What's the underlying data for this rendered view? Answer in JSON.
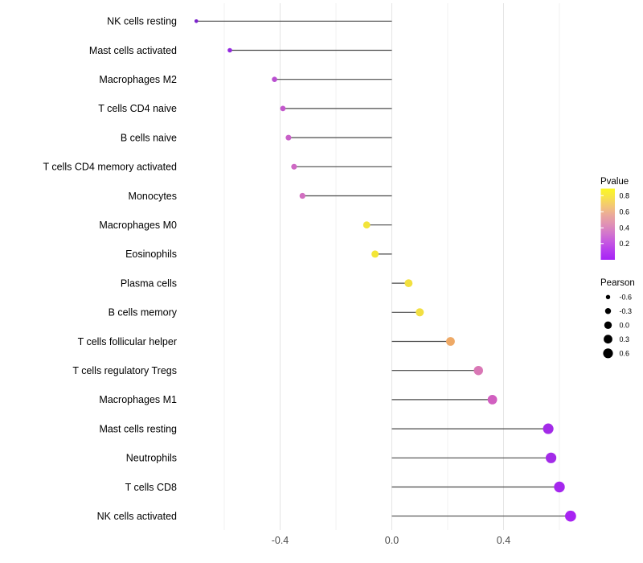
{
  "chart_data": {
    "type": "scatter",
    "variant": "horizontal-lollipop",
    "title": "",
    "xlabel": "",
    "ylabel": "",
    "xlim": [
      -0.775,
      0.71
    ],
    "x_tick_labels": [
      "-0.4",
      "0.0",
      "0.4"
    ],
    "x_tick_values": [
      -0.4,
      0.0,
      0.4
    ],
    "x_minor_gridlines": [
      -0.6,
      -0.2,
      0.2,
      0.6
    ],
    "grid": "vertical-only",
    "baseline_x": 0.0,
    "categories": [
      "NK cells resting",
      "Mast cells activated",
      "Macrophages M2",
      "T cells CD4 naive",
      "B cells naive",
      "T cells CD4 memory activated",
      "Monocytes",
      "Macrophages M0",
      "Eosinophils",
      "Plasma cells",
      "B cells memory",
      "T cells follicular helper",
      "T cells regulatory  Tregs",
      "Macrophages M1",
      "Mast cells resting",
      "Neutrophils",
      "T cells CD8",
      "NK cells activated"
    ],
    "series": [
      {
        "name": "Pearson",
        "values": [
          -0.7,
          -0.58,
          -0.42,
          -0.39,
          -0.37,
          -0.35,
          -0.32,
          -0.09,
          -0.06,
          0.06,
          0.1,
          0.21,
          0.31,
          0.36,
          0.56,
          0.57,
          0.6,
          0.64
        ]
      },
      {
        "name": "Pvalue (approx, read from color scale)",
        "values": [
          0.01,
          0.05,
          0.22,
          0.27,
          0.3,
          0.33,
          0.35,
          0.83,
          0.84,
          0.81,
          0.8,
          0.62,
          0.4,
          0.33,
          0.07,
          0.07,
          0.05,
          0.03
        ]
      }
    ],
    "point_colors": [
      "#7B22CC",
      "#9429E0",
      "#BA4FD1",
      "#C357CC",
      "#C960C8",
      "#CE69C4",
      "#D26FC1",
      "#F2E43A",
      "#F3E636",
      "#F2E03F",
      "#F2DF42",
      "#EEA966",
      "#D977B5",
      "#D15FC0",
      "#A32BE8",
      "#A32BE8",
      "#A527EE",
      "#A824F2"
    ],
    "point_radii": [
      2.3,
      2.8,
      3.3,
      3.4,
      3.5,
      3.55,
      3.65,
      4.4,
      4.5,
      4.9,
      5.05,
      5.4,
      5.75,
      5.9,
      6.55,
      6.6,
      6.7,
      6.85
    ],
    "stem_color": "#4A4A4A",
    "major_grid_color": "#E4E4E4",
    "minor_grid_color": "#F0F0F0",
    "axis_text_color": "#4D4D4D",
    "label_text_color": "#000000",
    "legend_position": "right",
    "legends": {
      "pvalue": {
        "title": "Pvalue",
        "tick_labels": [
          "0.8",
          "0.6",
          "0.4",
          "0.2"
        ],
        "tick_values": [
          0.8,
          0.6,
          0.4,
          0.2
        ],
        "bar_range": [
          0.87,
          0.02
        ],
        "gradient_top_to_bottom": [
          "#FBF822",
          "#F7E24B",
          "#F3C577",
          "#EAA89C",
          "#E091B4",
          "#D377CC",
          "#C558E0",
          "#B53BEE",
          "#A623F6"
        ]
      },
      "pearson": {
        "title": "Pearson",
        "item_labels": [
          "-0.6",
          "-0.3",
          "0.0",
          "0.3",
          "0.6"
        ],
        "item_values": [
          -0.6,
          -0.3,
          0.0,
          0.3,
          0.6
        ],
        "item_radii": [
          2.7,
          3.7,
          4.7,
          5.4,
          6.1
        ],
        "dot_color": "#000000"
      }
    }
  }
}
